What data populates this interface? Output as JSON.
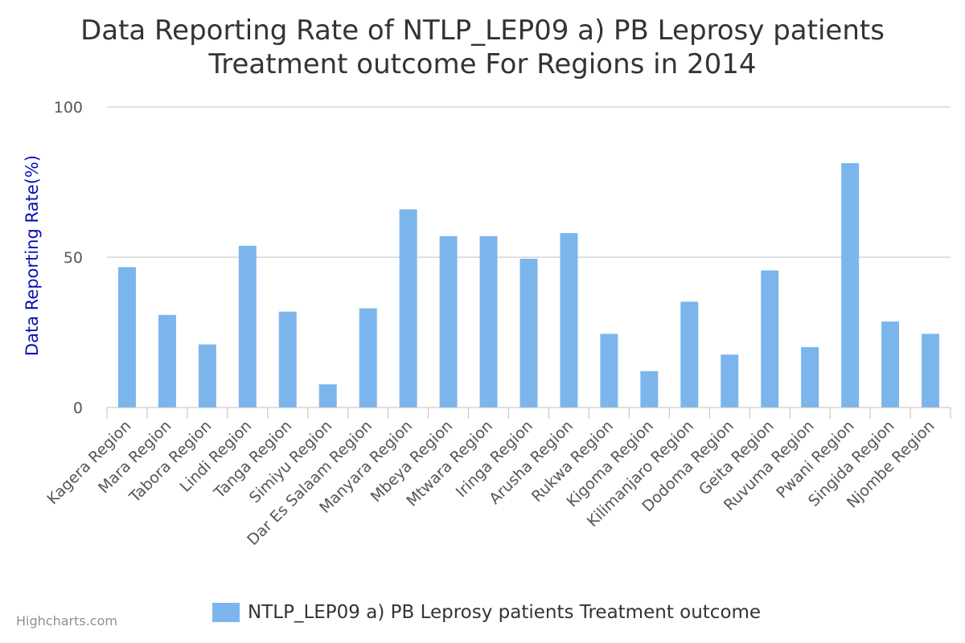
{
  "chart_data": {
    "type": "bar",
    "title_lines": [
      "Data Reporting Rate of NTLP_LEP09 a) PB Leprosy patients",
      "Treatment outcome For Regions in 2014"
    ],
    "ylabel": "Data Reporting Rate(%)",
    "xlabel": "",
    "ylim": [
      0,
      100
    ],
    "yticks": [
      "0",
      "50",
      "100"
    ],
    "grid": true,
    "legend_position": "bottom-center",
    "categories": [
      "Kagera Region",
      "Mara Region",
      "Tabora Region",
      "Lindi Region",
      "Tanga Region",
      "Simiyu Region",
      "Dar Es Salaam Region",
      "Manyara Region",
      "Mbeya Region",
      "Mtwara Region",
      "Iringa Region",
      "Arusha Region",
      "Rukwa Region",
      "Kigoma Region",
      "Kilimanjaro Region",
      "Dodoma Region",
      "Geita Region",
      "Ruvuma Region",
      "Pwani Region",
      "Singida Region",
      "Njombe Region"
    ],
    "series": [
      {
        "name": "NTLP_LEP09 a) PB Leprosy patients Treatment outcome",
        "color": "#7cb5ec",
        "values": [
          46.7,
          30.8,
          21.0,
          53.8,
          31.9,
          7.7,
          33.0,
          65.9,
          57.0,
          57.0,
          49.5,
          58.0,
          24.5,
          12.1,
          35.2,
          17.6,
          45.6,
          20.1,
          81.3,
          28.6,
          24.5
        ]
      }
    ]
  },
  "credit": "Highcharts.com",
  "colors": {
    "bar": "#7cb5ec",
    "grid": "#c0c0c0",
    "title": "#333333",
    "axis_title": "#0d0db3",
    "tick": "#555555"
  }
}
